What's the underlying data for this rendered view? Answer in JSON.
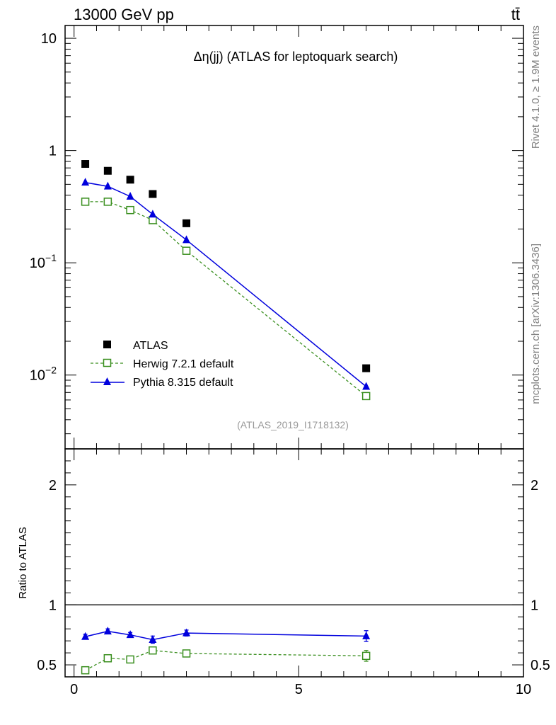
{
  "header": {
    "left": "13000 GeV pp",
    "right": "tt̄"
  },
  "side_labels": {
    "rivet": "Rivet 4.1.0, ≥ 1.9M events",
    "mcplots": "mcplots.cern.ch [arXiv:1306.3436]"
  },
  "analysis_id": "(ATLAS_2019_I1718132)",
  "colors": {
    "atlas": "#000000",
    "herwig": "#3a8f1f",
    "pythia": "#0000dd"
  },
  "chart_data": [
    {
      "type": "scatter",
      "scale": "log",
      "title": "Δη(jj) (ATLAS for leptoquark search)",
      "xlabel": "",
      "ylabel": "",
      "xlim": [
        -0.2,
        10
      ],
      "ylim": [
        0.0022,
        13
      ],
      "yticks": [
        {
          "value": 10,
          "base": "10",
          "exp": ""
        },
        {
          "value": 1,
          "base": "1",
          "exp": ""
        },
        {
          "value": 0.1,
          "base": "10",
          "exp": "−1"
        },
        {
          "value": 0.01,
          "base": "10",
          "exp": "−2"
        }
      ],
      "x": [
        0.25,
        0.75,
        1.25,
        1.75,
        2.5,
        6.5
      ],
      "series": [
        {
          "name": "ATLAS",
          "style": "markers",
          "marker": "square-filled",
          "values": [
            0.76,
            0.66,
            0.55,
            0.41,
            0.225,
            0.0115
          ]
        },
        {
          "name": "Herwig 7.2.1 default",
          "style": "dashed",
          "marker": "square-open",
          "values": [
            0.35,
            0.35,
            0.295,
            0.24,
            0.128,
            0.0065
          ]
        },
        {
          "name": "Pythia 8.315 default",
          "style": "solid",
          "marker": "triangle-filled",
          "values": [
            0.52,
            0.48,
            0.39,
            0.27,
            0.16,
            0.0079
          ]
        }
      ],
      "legend": [
        "ATLAS",
        "Herwig 7.2.1 default",
        "Pythia 8.315 default"
      ],
      "legend_position": "bottom-left"
    },
    {
      "type": "line",
      "scale": "linear",
      "title": "",
      "xlabel": "",
      "ylabel": "Ratio to ATLAS",
      "xlim": [
        -0.2,
        10
      ],
      "ylim": [
        0.4,
        2.3
      ],
      "yticks": [
        {
          "value": 2,
          "label": "2"
        },
        {
          "value": 1,
          "label": "1"
        },
        {
          "value": 0.5,
          "label": "0.5"
        }
      ],
      "xticks": [
        {
          "value": 0,
          "label": "0"
        },
        {
          "value": 5,
          "label": "5"
        },
        {
          "value": 10,
          "label": "10"
        }
      ],
      "x": [
        0.25,
        0.75,
        1.25,
        1.75,
        2.5,
        6.5
      ],
      "reference": 1,
      "series": [
        {
          "name": "Herwig 7.2.1 default",
          "style": "dashed",
          "marker": "square-open",
          "values": [
            0.455,
            0.555,
            0.545,
            0.62,
            0.595,
            0.575
          ],
          "errors": [
            0.015,
            0.02,
            0.02,
            0.025,
            0.025,
            0.045
          ]
        },
        {
          "name": "Pythia 8.315 default",
          "style": "solid",
          "marker": "triangle-filled",
          "values": [
            0.735,
            0.78,
            0.75,
            0.71,
            0.765,
            0.74
          ],
          "errors": [
            0.02,
            0.02,
            0.02,
            0.03,
            0.025,
            0.045
          ]
        }
      ]
    }
  ]
}
